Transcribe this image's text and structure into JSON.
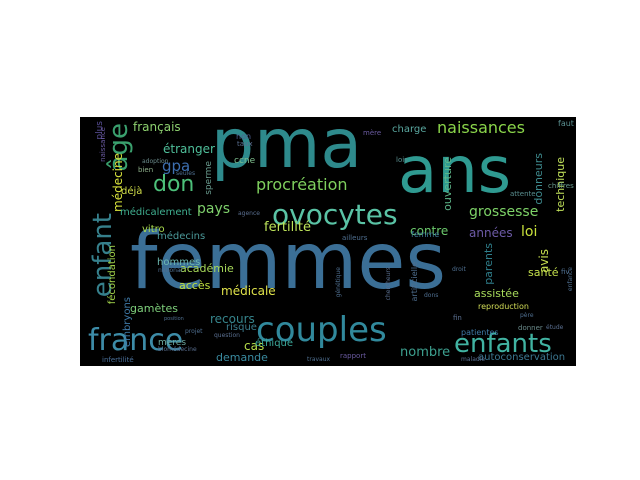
{
  "wordcloud": {
    "background": "#000000",
    "words": [
      {
        "text": "femmes",
        "color": "#3b6f96"
      },
      {
        "text": "pma",
        "color": "#2e8a8c"
      },
      {
        "text": "ans",
        "color": "#2f9a91"
      },
      {
        "text": "couples",
        "color": "#31899c"
      },
      {
        "text": "france",
        "color": "#3d8ca8"
      },
      {
        "text": "enfants",
        "color": "#41b3a2"
      },
      {
        "text": "ovocytes",
        "color": "#5ac3a5"
      },
      {
        "text": "enfant",
        "color": "#36808c"
      },
      {
        "text": "âge",
        "color": "#3aa06e"
      },
      {
        "text": "don",
        "color": "#4dc07a"
      },
      {
        "text": "procréation",
        "color": "#7fd05e"
      },
      {
        "text": "naissances",
        "color": "#8ad54a"
      },
      {
        "text": "grossesse",
        "color": "#7dd267"
      },
      {
        "text": "fertilité",
        "color": "#bde35a"
      },
      {
        "text": "loi",
        "color": "#c9e13b"
      },
      {
        "text": "années",
        "color": "#6c5aa6"
      },
      {
        "text": "gpa",
        "color": "#3d6fb0"
      },
      {
        "text": "pays",
        "color": "#7ed06b"
      },
      {
        "text": "français",
        "color": "#8dd06f"
      },
      {
        "text": "étranger",
        "color": "#4fbf9a"
      },
      {
        "text": "médecine",
        "color": "#d8e23b"
      },
      {
        "text": "médicalement",
        "color": "#3fae8f"
      },
      {
        "text": "recours",
        "color": "#36858c"
      },
      {
        "text": "contre",
        "color": "#6cc96c"
      },
      {
        "text": "parents",
        "color": "#2f7f8c"
      },
      {
        "text": "assistée",
        "color": "#a8dc5c"
      },
      {
        "text": "nombre",
        "color": "#3da08f"
      },
      {
        "text": "demande",
        "color": "#3a8ba0"
      },
      {
        "text": "médicale",
        "color": "#e0e34a"
      },
      {
        "text": "ovocytes",
        "color": "#5ac3a5"
      },
      {
        "text": "femme",
        "color": "#3f7d9c"
      },
      {
        "text": "vitro",
        "color": "#aadc4f"
      },
      {
        "text": "académie",
        "color": "#a7d95a"
      },
      {
        "text": "hommes",
        "color": "#6db8b0"
      },
      {
        "text": "accès",
        "color": "#c0e03e"
      },
      {
        "text": "fécondation",
        "color": "#a2d34a"
      },
      {
        "text": "gamètes",
        "color": "#7ecf7b"
      },
      {
        "text": "embryons",
        "color": "#3f7aa8"
      },
      {
        "text": "cas",
        "color": "#b8df4a"
      },
      {
        "text": "éthique",
        "color": "#3ba89a"
      },
      {
        "text": "risque",
        "color": "#3c7c8c"
      },
      {
        "text": "charge",
        "color": "#5aa8a0"
      },
      {
        "text": "ouverture",
        "color": "#5eb78a"
      },
      {
        "text": "donneurs",
        "color": "#3e8a8e"
      },
      {
        "text": "santé",
        "color": "#c5e14c"
      },
      {
        "text": "reproduction",
        "color": "#d4df58"
      },
      {
        "text": "autoconservation",
        "color": "#3c7790"
      },
      {
        "text": "technique",
        "color": "#c0e05a"
      },
      {
        "text": "déjà",
        "color": "#d2e04a"
      },
      {
        "text": "médecins",
        "color": "#4b9a9a"
      },
      {
        "text": "avis",
        "color": "#c8e04f"
      },
      {
        "text": "ccne",
        "color": "#7fc08f"
      },
      {
        "text": "sperme",
        "color": "#6a9c8f"
      },
      {
        "text": "mères",
        "color": "#6eaaa0"
      },
      {
        "text": "plus",
        "color": "#5a4f98"
      },
      {
        "text": "naissance",
        "color": "#6a5aa0"
      },
      {
        "text": "artificielle",
        "color": "#4f6f90"
      },
      {
        "text": "attente",
        "color": "#5a8f90"
      },
      {
        "text": "chiffres",
        "color": "#6a9c8f"
      },
      {
        "text": "faut",
        "color": "#5a8f90"
      },
      {
        "text": "lois",
        "color": "#5a8f90"
      },
      {
        "text": "taux",
        "color": "#5a6f90"
      },
      {
        "text": "bien",
        "color": "#8fb08a"
      },
      {
        "text": "adoption",
        "color": "#6a8a8a"
      },
      {
        "text": "agence",
        "color": "#5a6f90"
      },
      {
        "text": "infertilité",
        "color": "#4a6f98"
      },
      {
        "text": "patientes",
        "color": "#3f7aa8"
      },
      {
        "text": "donner",
        "color": "#6a8a8a"
      },
      {
        "text": "fin",
        "color": "#5a6f90"
      },
      {
        "text": "rapport",
        "color": "#6a5aa0"
      },
      {
        "text": "maladie",
        "color": "#5a6f90"
      },
      {
        "text": "national",
        "color": "#4f6f90"
      },
      {
        "text": "question",
        "color": "#5a6f90"
      },
      {
        "text": "génétique",
        "color": "#4f6f90"
      },
      {
        "text": "biomédecine",
        "color": "#5a6f90"
      },
      {
        "text": "chercheurs",
        "color": "#5a6f90"
      },
      {
        "text": "mère",
        "color": "#6a5aa0"
      },
      {
        "text": "non",
        "color": "#4f5f90"
      },
      {
        "text": "étude",
        "color": "#5a6f90"
      },
      {
        "text": "projet",
        "color": "#4f6f90"
      },
      {
        "text": "position",
        "color": "#4f6f90"
      },
      {
        "text": "travaux",
        "color": "#4f6f90"
      },
      {
        "text": "ailleurs",
        "color": "#4f6f90"
      },
      {
        "text": "seules",
        "color": "#4f6f90"
      },
      {
        "text": "dons",
        "color": "#4f6f90"
      },
      {
        "text": "fiv",
        "color": "#4f6f90"
      },
      {
        "text": "droit",
        "color": "#4f6f90"
      },
      {
        "text": "père",
        "color": "#4f6f90"
      },
      {
        "text": "enfance",
        "color": "#4f6f90"
      }
    ]
  }
}
